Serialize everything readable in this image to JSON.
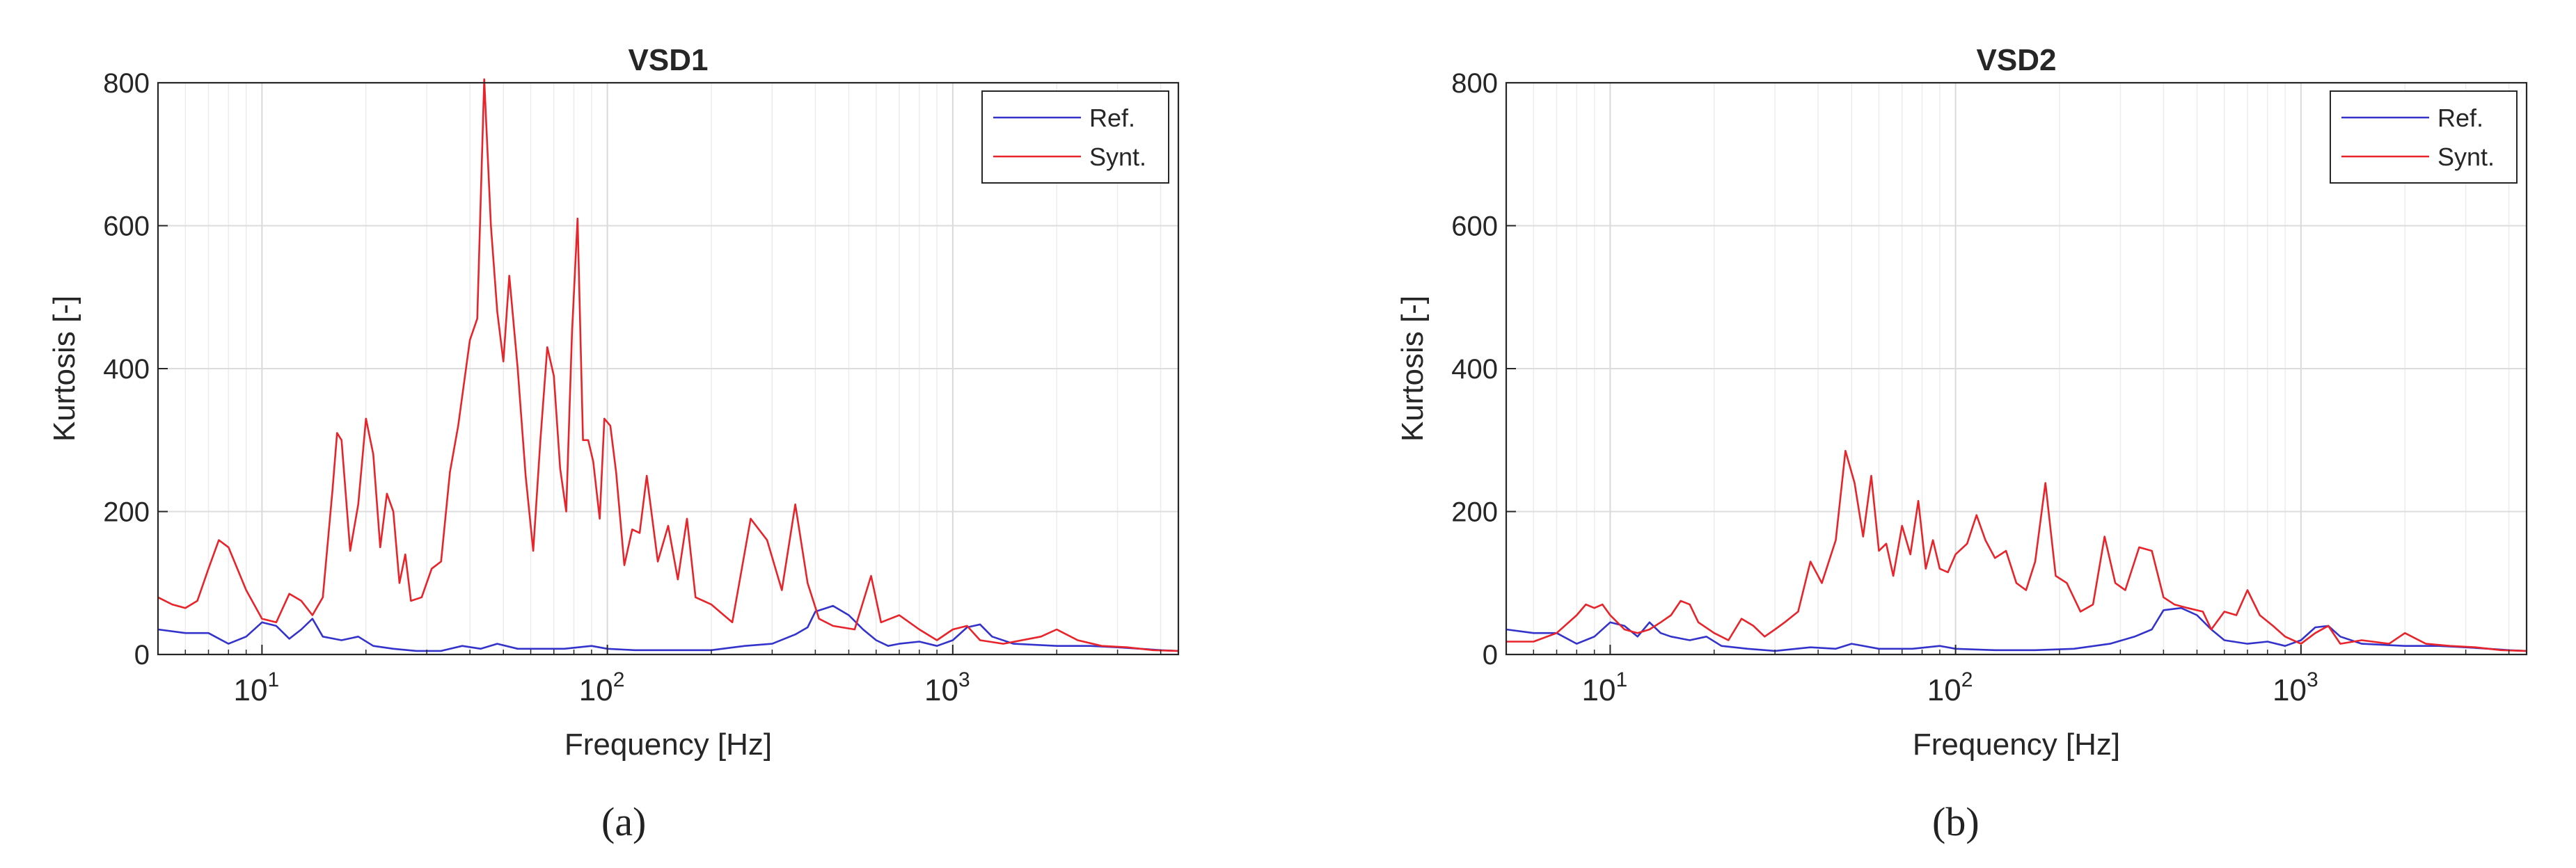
{
  "chart_data": [
    {
      "type": "line",
      "title": "VSD1",
      "xlabel": "Frequency [Hz]",
      "ylabel": "Kurtosis [-]",
      "xscale": "log",
      "xlim": [
        5,
        4500
      ],
      "ylim": [
        0,
        800
      ],
      "yticks": [
        0,
        200,
        400,
        600,
        800
      ],
      "xtick_labels": [
        {
          "base": "10",
          "exp": "1"
        },
        {
          "base": "10",
          "exp": "2"
        },
        {
          "base": "10",
          "exp": "3"
        }
      ],
      "grid": true,
      "legend": "top-right",
      "caption": "(a)",
      "series": [
        {
          "name": "Ref.",
          "color": "#3333cc",
          "points": [
            [
              5,
              35
            ],
            [
              6,
              30
            ],
            [
              7,
              30
            ],
            [
              8,
              15
            ],
            [
              9,
              25
            ],
            [
              10,
              45
            ],
            [
              11,
              40
            ],
            [
              12,
              22
            ],
            [
              13,
              35
            ],
            [
              14,
              50
            ],
            [
              15,
              25
            ],
            [
              17,
              20
            ],
            [
              19,
              25
            ],
            [
              21,
              12
            ],
            [
              24,
              8
            ],
            [
              28,
              5
            ],
            [
              33,
              5
            ],
            [
              38,
              12
            ],
            [
              43,
              8
            ],
            [
              48,
              15
            ],
            [
              55,
              8
            ],
            [
              65,
              8
            ],
            [
              75,
              8
            ],
            [
              90,
              12
            ],
            [
              100,
              8
            ],
            [
              120,
              6
            ],
            [
              150,
              6
            ],
            [
              200,
              6
            ],
            [
              250,
              12
            ],
            [
              300,
              15
            ],
            [
              350,
              28
            ],
            [
              380,
              38
            ],
            [
              400,
              60
            ],
            [
              450,
              68
            ],
            [
              500,
              55
            ],
            [
              550,
              35
            ],
            [
              600,
              20
            ],
            [
              650,
              12
            ],
            [
              700,
              15
            ],
            [
              800,
              18
            ],
            [
              900,
              12
            ],
            [
              1000,
              20
            ],
            [
              1100,
              38
            ],
            [
              1200,
              42
            ],
            [
              1300,
              25
            ],
            [
              1500,
              15
            ],
            [
              2000,
              12
            ],
            [
              2500,
              12
            ],
            [
              3000,
              10
            ],
            [
              3500,
              8
            ],
            [
              4000,
              6
            ],
            [
              4500,
              5
            ]
          ]
        },
        {
          "name": "Synt.",
          "color": "#e8232a",
          "points": [
            [
              5,
              80
            ],
            [
              5.5,
              70
            ],
            [
              6,
              65
            ],
            [
              6.5,
              75
            ],
            [
              7,
              120
            ],
            [
              7.5,
              160
            ],
            [
              8,
              150
            ],
            [
              9,
              90
            ],
            [
              10,
              50
            ],
            [
              11,
              45
            ],
            [
              12,
              85
            ],
            [
              13,
              75
            ],
            [
              14,
              55
            ],
            [
              15,
              80
            ],
            [
              16,
              230
            ],
            [
              16.5,
              310
            ],
            [
              17,
              300
            ],
            [
              18,
              145
            ],
            [
              19,
              210
            ],
            [
              20,
              330
            ],
            [
              21,
              280
            ],
            [
              22,
              150
            ],
            [
              23,
              225
            ],
            [
              24,
              200
            ],
            [
              25,
              100
            ],
            [
              26,
              140
            ],
            [
              27,
              75
            ],
            [
              29,
              80
            ],
            [
              31,
              120
            ],
            [
              33,
              130
            ],
            [
              35,
              255
            ],
            [
              37,
              320
            ],
            [
              40,
              440
            ],
            [
              42,
              470
            ],
            [
              44,
              805
            ],
            [
              46,
              600
            ],
            [
              48,
              480
            ],
            [
              50,
              410
            ],
            [
              52,
              530
            ],
            [
              55,
              400
            ],
            [
              58,
              250
            ],
            [
              61,
              145
            ],
            [
              64,
              300
            ],
            [
              67,
              430
            ],
            [
              70,
              390
            ],
            [
              73,
              260
            ],
            [
              76,
              200
            ],
            [
              79,
              450
            ],
            [
              82,
              610
            ],
            [
              85,
              300
            ],
            [
              88,
              300
            ],
            [
              91,
              270
            ],
            [
              95,
              190
            ],
            [
              98,
              330
            ],
            [
              102,
              320
            ],
            [
              106,
              255
            ],
            [
              112,
              125
            ],
            [
              118,
              175
            ],
            [
              124,
              170
            ],
            [
              130,
              250
            ],
            [
              140,
              130
            ],
            [
              150,
              180
            ],
            [
              160,
              105
            ],
            [
              170,
              190
            ],
            [
              180,
              80
            ],
            [
              200,
              70
            ],
            [
              230,
              45
            ],
            [
              260,
              190
            ],
            [
              290,
              160
            ],
            [
              320,
              90
            ],
            [
              350,
              210
            ],
            [
              380,
              100
            ],
            [
              410,
              50
            ],
            [
              450,
              40
            ],
            [
              520,
              35
            ],
            [
              580,
              110
            ],
            [
              620,
              45
            ],
            [
              700,
              55
            ],
            [
              800,
              35
            ],
            [
              900,
              20
            ],
            [
              1000,
              35
            ],
            [
              1100,
              40
            ],
            [
              1200,
              20
            ],
            [
              1400,
              15
            ],
            [
              1800,
              25
            ],
            [
              2000,
              35
            ],
            [
              2300,
              20
            ],
            [
              2700,
              12
            ],
            [
              3200,
              10
            ],
            [
              3800,
              6
            ],
            [
              4500,
              5
            ]
          ]
        }
      ]
    },
    {
      "type": "line",
      "title": "VSD2",
      "xlabel": "Frequency [Hz]",
      "ylabel": "Kurtosis [-]",
      "xscale": "log",
      "xlim": [
        5,
        4500
      ],
      "ylim": [
        0,
        800
      ],
      "yticks": [
        0,
        200,
        400,
        600,
        800
      ],
      "xtick_labels": [
        {
          "base": "10",
          "exp": "1"
        },
        {
          "base": "10",
          "exp": "2"
        },
        {
          "base": "10",
          "exp": "3"
        }
      ],
      "grid": true,
      "legend": "top-right",
      "caption": "(b)",
      "series": [
        {
          "name": "Ref.",
          "color": "#3333cc",
          "points": [
            [
              5,
              35
            ],
            [
              6,
              30
            ],
            [
              7,
              30
            ],
            [
              8,
              15
            ],
            [
              9,
              25
            ],
            [
              10,
              45
            ],
            [
              11,
              40
            ],
            [
              12,
              25
            ],
            [
              13,
              45
            ],
            [
              14,
              30
            ],
            [
              15,
              25
            ],
            [
              17,
              20
            ],
            [
              19,
              25
            ],
            [
              21,
              12
            ],
            [
              25,
              8
            ],
            [
              30,
              5
            ],
            [
              38,
              10
            ],
            [
              45,
              8
            ],
            [
              50,
              15
            ],
            [
              60,
              8
            ],
            [
              75,
              8
            ],
            [
              90,
              12
            ],
            [
              100,
              8
            ],
            [
              130,
              6
            ],
            [
              170,
              6
            ],
            [
              220,
              8
            ],
            [
              280,
              15
            ],
            [
              330,
              25
            ],
            [
              370,
              35
            ],
            [
              400,
              62
            ],
            [
              450,
              65
            ],
            [
              500,
              55
            ],
            [
              550,
              35
            ],
            [
              600,
              20
            ],
            [
              700,
              15
            ],
            [
              800,
              18
            ],
            [
              900,
              12
            ],
            [
              1000,
              20
            ],
            [
              1100,
              38
            ],
            [
              1200,
              40
            ],
            [
              1300,
              25
            ],
            [
              1500,
              15
            ],
            [
              2000,
              12
            ],
            [
              2500,
              12
            ],
            [
              3000,
              10
            ],
            [
              3500,
              8
            ],
            [
              4000,
              6
            ],
            [
              4500,
              5
            ]
          ]
        },
        {
          "name": "Synt.",
          "color": "#e8232a",
          "points": [
            [
              5,
              18
            ],
            [
              6,
              18
            ],
            [
              7,
              30
            ],
            [
              8,
              55
            ],
            [
              8.5,
              70
            ],
            [
              9,
              65
            ],
            [
              9.5,
              70
            ],
            [
              10,
              55
            ],
            [
              11,
              35
            ],
            [
              12,
              30
            ],
            [
              13,
              35
            ],
            [
              14,
              45
            ],
            [
              15,
              55
            ],
            [
              16,
              75
            ],
            [
              17,
              70
            ],
            [
              18,
              45
            ],
            [
              20,
              30
            ],
            [
              22,
              20
            ],
            [
              24,
              50
            ],
            [
              26,
              40
            ],
            [
              28,
              25
            ],
            [
              30,
              35
            ],
            [
              32,
              45
            ],
            [
              35,
              60
            ],
            [
              38,
              130
            ],
            [
              41,
              100
            ],
            [
              45,
              160
            ],
            [
              48,
              285
            ],
            [
              51,
              240
            ],
            [
              54,
              165
            ],
            [
              57,
              250
            ],
            [
              60,
              145
            ],
            [
              63,
              155
            ],
            [
              66,
              110
            ],
            [
              70,
              180
            ],
            [
              74,
              140
            ],
            [
              78,
              215
            ],
            [
              82,
              120
            ],
            [
              86,
              160
            ],
            [
              90,
              120
            ],
            [
              95,
              115
            ],
            [
              100,
              140
            ],
            [
              108,
              155
            ],
            [
              115,
              195
            ],
            [
              122,
              160
            ],
            [
              130,
              135
            ],
            [
              140,
              145
            ],
            [
              150,
              100
            ],
            [
              160,
              90
            ],
            [
              170,
              130
            ],
            [
              182,
              240
            ],
            [
              195,
              110
            ],
            [
              210,
              100
            ],
            [
              230,
              60
            ],
            [
              250,
              70
            ],
            [
              270,
              165
            ],
            [
              290,
              100
            ],
            [
              310,
              90
            ],
            [
              340,
              150
            ],
            [
              370,
              145
            ],
            [
              400,
              80
            ],
            [
              430,
              70
            ],
            [
              470,
              65
            ],
            [
              520,
              60
            ],
            [
              550,
              35
            ],
            [
              600,
              60
            ],
            [
              650,
              55
            ],
            [
              700,
              90
            ],
            [
              760,
              55
            ],
            [
              830,
              40
            ],
            [
              900,
              25
            ],
            [
              1000,
              15
            ],
            [
              1100,
              30
            ],
            [
              1200,
              40
            ],
            [
              1300,
              15
            ],
            [
              1500,
              20
            ],
            [
              1800,
              15
            ],
            [
              2000,
              30
            ],
            [
              2300,
              15
            ],
            [
              2700,
              12
            ],
            [
              3200,
              10
            ],
            [
              3800,
              6
            ],
            [
              4500,
              5
            ]
          ]
        }
      ]
    }
  ]
}
